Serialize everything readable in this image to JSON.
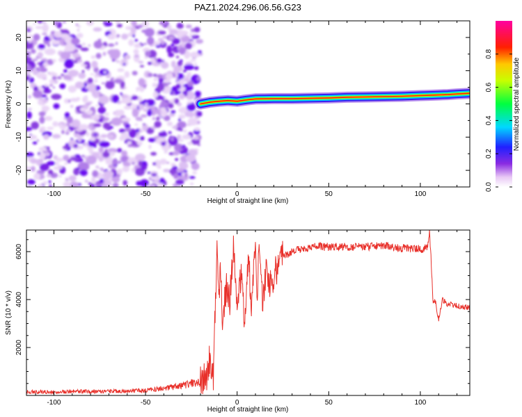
{
  "title": "PAZ1.2024.296.06.56.G23",
  "chart_data": [
    {
      "type": "heatmap",
      "name": "spectrogram",
      "xlabel": "Height of straight line (km)",
      "ylabel": "Frequency (Hz)",
      "xlim": [
        -115,
        127
      ],
      "ylim": [
        -25,
        25
      ],
      "xticks": [
        "-100",
        "-50",
        "0",
        "50",
        "100"
      ],
      "yticks": [
        "-20",
        "-10",
        "0",
        "10",
        "20"
      ],
      "noise_region_x": [
        -115,
        -20
      ],
      "signal_ridge": {
        "x": [
          -20,
          -15,
          -10,
          -5,
          0,
          5,
          10,
          20,
          30,
          40,
          50,
          60,
          70,
          80,
          90,
          100,
          105,
          110,
          115,
          120,
          127
        ],
        "frequency": [
          0,
          0.5,
          0.8,
          1.0,
          0.8,
          1.2,
          1.5,
          1.6,
          1.6,
          1.7,
          1.8,
          2.0,
          2.1,
          2.2,
          2.3,
          2.5,
          2.6,
          2.7,
          2.8,
          3.0,
          3.2
        ]
      },
      "colorbar": {
        "label": "Normalized spectral amplitude",
        "range": [
          0,
          1
        ],
        "ticks": [
          "0.0",
          "0.2",
          "0.4",
          "0.6",
          "0.8"
        ],
        "colormap": "rainbow: white-violet-blue-cyan-green-yellow-red-magenta"
      }
    },
    {
      "type": "line",
      "name": "snr",
      "xlabel": "Height of straight line (km)",
      "ylabel": "SNR (10 * v/v)",
      "xlim": [
        -115,
        127
      ],
      "ylim": [
        0,
        6900
      ],
      "xticks": [
        "-100",
        "-50",
        "0",
        "50",
        "100"
      ],
      "yticks": [
        "2000",
        "4000",
        "6000"
      ],
      "color": "#e8302a",
      "x": [
        -115,
        -100,
        -80,
        -60,
        -50,
        -45,
        -40,
        -35,
        -30,
        -25,
        -20,
        -17,
        -15,
        -13,
        -12,
        -11,
        -10,
        -9,
        -8,
        -6,
        -4,
        -2,
        0,
        2,
        4,
        6,
        8,
        10,
        11,
        12,
        14,
        16,
        18,
        20,
        25,
        30,
        40,
        50,
        60,
        70,
        80,
        90,
        100,
        104,
        105,
        106,
        107,
        108,
        110,
        112,
        115,
        120,
        127
      ],
      "y": [
        150,
        150,
        170,
        180,
        200,
        250,
        300,
        350,
        400,
        500,
        550,
        700,
        1500,
        800,
        3500,
        6400,
        4000,
        5200,
        3300,
        4500,
        4000,
        6300,
        3500,
        5000,
        3200,
        5800,
        3800,
        6700,
        4200,
        6200,
        3600,
        5600,
        4500,
        5000,
        5800,
        6000,
        6200,
        6200,
        6200,
        6200,
        6250,
        6150,
        6100,
        6150,
        6800,
        5500,
        3800,
        4000,
        3200,
        4000,
        3800,
        3750,
        3650
      ]
    }
  ]
}
